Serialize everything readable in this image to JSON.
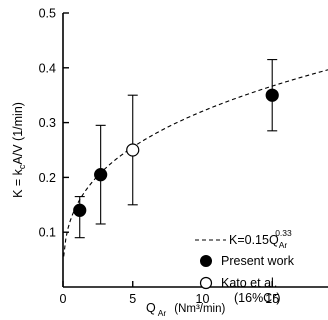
{
  "chart_data": {
    "type": "scatter",
    "xlabel_main": "Q",
    "xlabel_sub": "Ar",
    "xlabel_unit": "(Nm³/min)",
    "ylabel": "K = k",
    "ylabel_sub": "c",
    "ylabel_rest": "A/V (1/min)",
    "xlim": [
      0,
      19
    ],
    "ylim": [
      0,
      0.5
    ],
    "x_ticks": [
      "0",
      "5",
      "10",
      "15"
    ],
    "x_tick_values": [
      0,
      5,
      10,
      15
    ],
    "y_ticks": [
      "0.1",
      "0.2",
      "0.3",
      "0.4",
      "0.5"
    ],
    "y_tick_values": [
      0.1,
      0.2,
      0.3,
      0.4,
      0.5
    ],
    "series": [
      {
        "name": "Present work",
        "marker": "filled-circle",
        "x": [
          1.2,
          2.7,
          15.0
        ],
        "y": [
          0.14,
          0.205,
          0.35
        ],
        "err_low": [
          0.09,
          0.115,
          0.285
        ],
        "err_high": [
          0.165,
          0.295,
          0.415
        ]
      },
      {
        "name": "Kato et al.",
        "name_line2": "(16%Cr)",
        "marker": "open-circle",
        "x": [
          5.0
        ],
        "y": [
          0.25
        ],
        "err_low": [
          0.15
        ],
        "err_high": [
          0.35
        ]
      }
    ],
    "fit": {
      "label_prefix": "K=0.15Q",
      "label_sub": "Ar",
      "label_exp": "0.33",
      "coef": 0.15,
      "exponent": 0.33,
      "x_from": 0.05,
      "x_to": 19
    },
    "legend_position": "bottom-right"
  }
}
